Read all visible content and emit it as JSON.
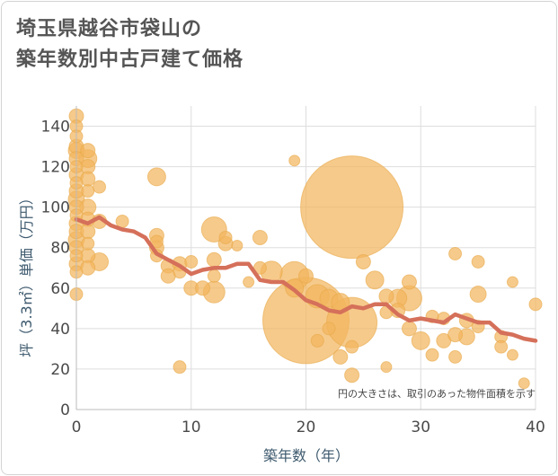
{
  "chart_data": {
    "type": "scatter",
    "title_lines": [
      "埼玉県越谷市袋山の",
      "築年数別中古戸建て価格"
    ],
    "xlabel": "築年数（年）",
    "ylabel": "坪（3.3㎡）単価（万円）",
    "xlim": [
      0,
      40
    ],
    "ylim": [
      0,
      150
    ],
    "x_ticks": [
      0,
      10,
      20,
      30,
      40
    ],
    "y_ticks": [
      0,
      20,
      40,
      60,
      80,
      100,
      120,
      140
    ],
    "grid": true,
    "note": "円の大きさは、取引のあった物件面積を示す",
    "colors": {
      "bubble": "#f2b65e",
      "bubble_stroke": "#e8a848",
      "line": "#d5705a",
      "grid": "#dddddd"
    },
    "series": [
      {
        "name": "",
        "kind": "bubble",
        "points": [
          {
            "x": 0,
            "y": 145,
            "s": 8
          },
          {
            "x": 0,
            "y": 140,
            "s": 7
          },
          {
            "x": 0,
            "y": 135,
            "s": 7
          },
          {
            "x": 0,
            "y": 130,
            "s": 8
          },
          {
            "x": 0,
            "y": 128,
            "s": 9
          },
          {
            "x": 0,
            "y": 124,
            "s": 8
          },
          {
            "x": 0,
            "y": 120,
            "s": 7
          },
          {
            "x": 0,
            "y": 116,
            "s": 8
          },
          {
            "x": 0,
            "y": 112,
            "s": 7
          },
          {
            "x": 0,
            "y": 108,
            "s": 8
          },
          {
            "x": 0,
            "y": 104,
            "s": 9
          },
          {
            "x": 0,
            "y": 100,
            "s": 8
          },
          {
            "x": 0,
            "y": 96,
            "s": 7
          },
          {
            "x": 0,
            "y": 92,
            "s": 8
          },
          {
            "x": 0,
            "y": 88,
            "s": 8
          },
          {
            "x": 0,
            "y": 84,
            "s": 9
          },
          {
            "x": 0,
            "y": 80,
            "s": 8
          },
          {
            "x": 0,
            "y": 76,
            "s": 7
          },
          {
            "x": 0,
            "y": 72,
            "s": 8
          },
          {
            "x": 0,
            "y": 68,
            "s": 7
          },
          {
            "x": 0,
            "y": 57,
            "s": 7
          },
          {
            "x": 1,
            "y": 128,
            "s": 8
          },
          {
            "x": 1,
            "y": 124,
            "s": 10
          },
          {
            "x": 1,
            "y": 120,
            "s": 8
          },
          {
            "x": 1,
            "y": 114,
            "s": 8
          },
          {
            "x": 1,
            "y": 108,
            "s": 7
          },
          {
            "x": 1,
            "y": 100,
            "s": 9
          },
          {
            "x": 1,
            "y": 94,
            "s": 8
          },
          {
            "x": 1,
            "y": 88,
            "s": 8
          },
          {
            "x": 1,
            "y": 82,
            "s": 7
          },
          {
            "x": 1,
            "y": 76,
            "s": 8
          },
          {
            "x": 1,
            "y": 70,
            "s": 8
          },
          {
            "x": 2,
            "y": 110,
            "s": 7
          },
          {
            "x": 2,
            "y": 93,
            "s": 8
          },
          {
            "x": 2,
            "y": 73,
            "s": 10
          },
          {
            "x": 4,
            "y": 93,
            "s": 7
          },
          {
            "x": 7,
            "y": 115,
            "s": 10
          },
          {
            "x": 7,
            "y": 86,
            "s": 8
          },
          {
            "x": 7,
            "y": 83,
            "s": 7
          },
          {
            "x": 7,
            "y": 80,
            "s": 8
          },
          {
            "x": 7,
            "y": 76,
            "s": 7
          },
          {
            "x": 8,
            "y": 71,
            "s": 8
          },
          {
            "x": 8,
            "y": 66,
            "s": 8
          },
          {
            "x": 9,
            "y": 21,
            "s": 7
          },
          {
            "x": 9,
            "y": 72,
            "s": 8
          },
          {
            "x": 9,
            "y": 68,
            "s": 7
          },
          {
            "x": 10,
            "y": 73,
            "s": 7
          },
          {
            "x": 10,
            "y": 60,
            "s": 8
          },
          {
            "x": 11,
            "y": 60,
            "s": 8
          },
          {
            "x": 12,
            "y": 89,
            "s": 14
          },
          {
            "x": 12,
            "y": 74,
            "s": 8
          },
          {
            "x": 12,
            "y": 66,
            "s": 7
          },
          {
            "x": 12,
            "y": 58,
            "s": 12
          },
          {
            "x": 13,
            "y": 85,
            "s": 7
          },
          {
            "x": 13,
            "y": 82,
            "s": 8
          },
          {
            "x": 14,
            "y": 81,
            "s": 6
          },
          {
            "x": 15,
            "y": 63,
            "s": 6
          },
          {
            "x": 16,
            "y": 85,
            "s": 8
          },
          {
            "x": 16,
            "y": 70,
            "s": 7
          },
          {
            "x": 17,
            "y": 68,
            "s": 12
          },
          {
            "x": 19,
            "y": 123,
            "s": 6
          },
          {
            "x": 19,
            "y": 66,
            "s": 16
          },
          {
            "x": 19,
            "y": 60,
            "s": 10
          },
          {
            "x": 20,
            "y": 44,
            "s": 48
          },
          {
            "x": 20,
            "y": 66,
            "s": 8
          },
          {
            "x": 21,
            "y": 56,
            "s": 13
          },
          {
            "x": 21,
            "y": 34,
            "s": 7
          },
          {
            "x": 22,
            "y": 55,
            "s": 10
          },
          {
            "x": 22,
            "y": 40,
            "s": 7
          },
          {
            "x": 23,
            "y": 53,
            "s": 10
          },
          {
            "x": 23,
            "y": 26,
            "s": 8
          },
          {
            "x": 24,
            "y": 100,
            "s": 57
          },
          {
            "x": 24,
            "y": 43,
            "s": 28
          },
          {
            "x": 24,
            "y": 31,
            "s": 7
          },
          {
            "x": 24,
            "y": 17,
            "s": 8
          },
          {
            "x": 25,
            "y": 73,
            "s": 8
          },
          {
            "x": 26,
            "y": 64,
            "s": 10
          },
          {
            "x": 27,
            "y": 56,
            "s": 8
          },
          {
            "x": 27,
            "y": 48,
            "s": 7
          },
          {
            "x": 27,
            "y": 21,
            "s": 6
          },
          {
            "x": 28,
            "y": 55,
            "s": 10
          },
          {
            "x": 28,
            "y": 49,
            "s": 8
          },
          {
            "x": 29,
            "y": 63,
            "s": 8
          },
          {
            "x": 29,
            "y": 55,
            "s": 14
          },
          {
            "x": 29,
            "y": 40,
            "s": 8
          },
          {
            "x": 30,
            "y": 34,
            "s": 10
          },
          {
            "x": 31,
            "y": 46,
            "s": 7
          },
          {
            "x": 31,
            "y": 27,
            "s": 7
          },
          {
            "x": 32,
            "y": 34,
            "s": 8
          },
          {
            "x": 32,
            "y": 45,
            "s": 7
          },
          {
            "x": 33,
            "y": 77,
            "s": 7
          },
          {
            "x": 33,
            "y": 37,
            "s": 8
          },
          {
            "x": 33,
            "y": 26,
            "s": 7
          },
          {
            "x": 34,
            "y": 44,
            "s": 8
          },
          {
            "x": 34,
            "y": 36,
            "s": 9
          },
          {
            "x": 35,
            "y": 73,
            "s": 7
          },
          {
            "x": 35,
            "y": 57,
            "s": 9
          },
          {
            "x": 35,
            "y": 41,
            "s": 7
          },
          {
            "x": 37,
            "y": 36,
            "s": 7
          },
          {
            "x": 37,
            "y": 31,
            "s": 7
          },
          {
            "x": 38,
            "y": 63,
            "s": 6
          },
          {
            "x": 38,
            "y": 27,
            "s": 6
          },
          {
            "x": 39,
            "y": 13,
            "s": 6
          },
          {
            "x": 40,
            "y": 52,
            "s": 7
          }
        ]
      },
      {
        "name": "",
        "kind": "line",
        "points": [
          {
            "x": 0,
            "y": 94
          },
          {
            "x": 1,
            "y": 92
          },
          {
            "x": 2,
            "y": 95
          },
          {
            "x": 3,
            "y": 91
          },
          {
            "x": 4,
            "y": 89
          },
          {
            "x": 5,
            "y": 88
          },
          {
            "x": 6,
            "y": 85
          },
          {
            "x": 7,
            "y": 77
          },
          {
            "x": 8,
            "y": 74
          },
          {
            "x": 9,
            "y": 71
          },
          {
            "x": 10,
            "y": 67
          },
          {
            "x": 11,
            "y": 69
          },
          {
            "x": 12,
            "y": 70
          },
          {
            "x": 13,
            "y": 70
          },
          {
            "x": 14,
            "y": 72
          },
          {
            "x": 15,
            "y": 72
          },
          {
            "x": 16,
            "y": 64
          },
          {
            "x": 17,
            "y": 63
          },
          {
            "x": 18,
            "y": 63
          },
          {
            "x": 19,
            "y": 59
          },
          {
            "x": 20,
            "y": 54
          },
          {
            "x": 21,
            "y": 52
          },
          {
            "x": 22,
            "y": 49
          },
          {
            "x": 23,
            "y": 48
          },
          {
            "x": 24,
            "y": 51
          },
          {
            "x": 25,
            "y": 50
          },
          {
            "x": 26,
            "y": 52
          },
          {
            "x": 27,
            "y": 52
          },
          {
            "x": 28,
            "y": 47
          },
          {
            "x": 29,
            "y": 44
          },
          {
            "x": 30,
            "y": 45
          },
          {
            "x": 31,
            "y": 44
          },
          {
            "x": 32,
            "y": 43
          },
          {
            "x": 33,
            "y": 47
          },
          {
            "x": 34,
            "y": 45
          },
          {
            "x": 35,
            "y": 43
          },
          {
            "x": 36,
            "y": 43
          },
          {
            "x": 37,
            "y": 38
          },
          {
            "x": 38,
            "y": 37
          },
          {
            "x": 39,
            "y": 35
          },
          {
            "x": 40,
            "y": 34
          }
        ]
      }
    ]
  }
}
